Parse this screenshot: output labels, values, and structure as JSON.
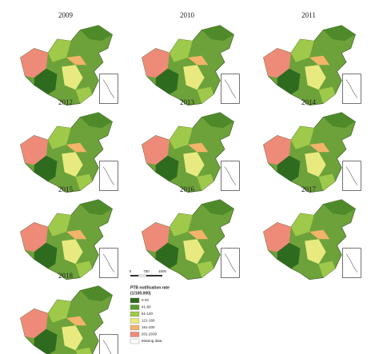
{
  "panels": [
    "2009",
    "2010",
    "2011",
    "2012",
    "2013",
    "2014",
    "2015",
    "2016",
    "2017",
    "2018"
  ],
  "legend": {
    "scale": [
      "0",
      "750",
      "1500"
    ],
    "title": "PTB notification rate",
    "subtitle": "(1/100,000)",
    "items": [
      {
        "label": "0-40",
        "color": "#2f6b1f"
      },
      {
        "label": "41-60",
        "color": "#5a9a2e"
      },
      {
        "label": "61-120",
        "color": "#9fc94a"
      },
      {
        "label": "121-160",
        "color": "#e8ea80"
      },
      {
        "label": "161-200",
        "color": "#f2b46a"
      },
      {
        "label": "201-2039",
        "color": "#ee8a78"
      },
      {
        "label": "Missing data",
        "color": "#ffffff"
      }
    ]
  }
}
